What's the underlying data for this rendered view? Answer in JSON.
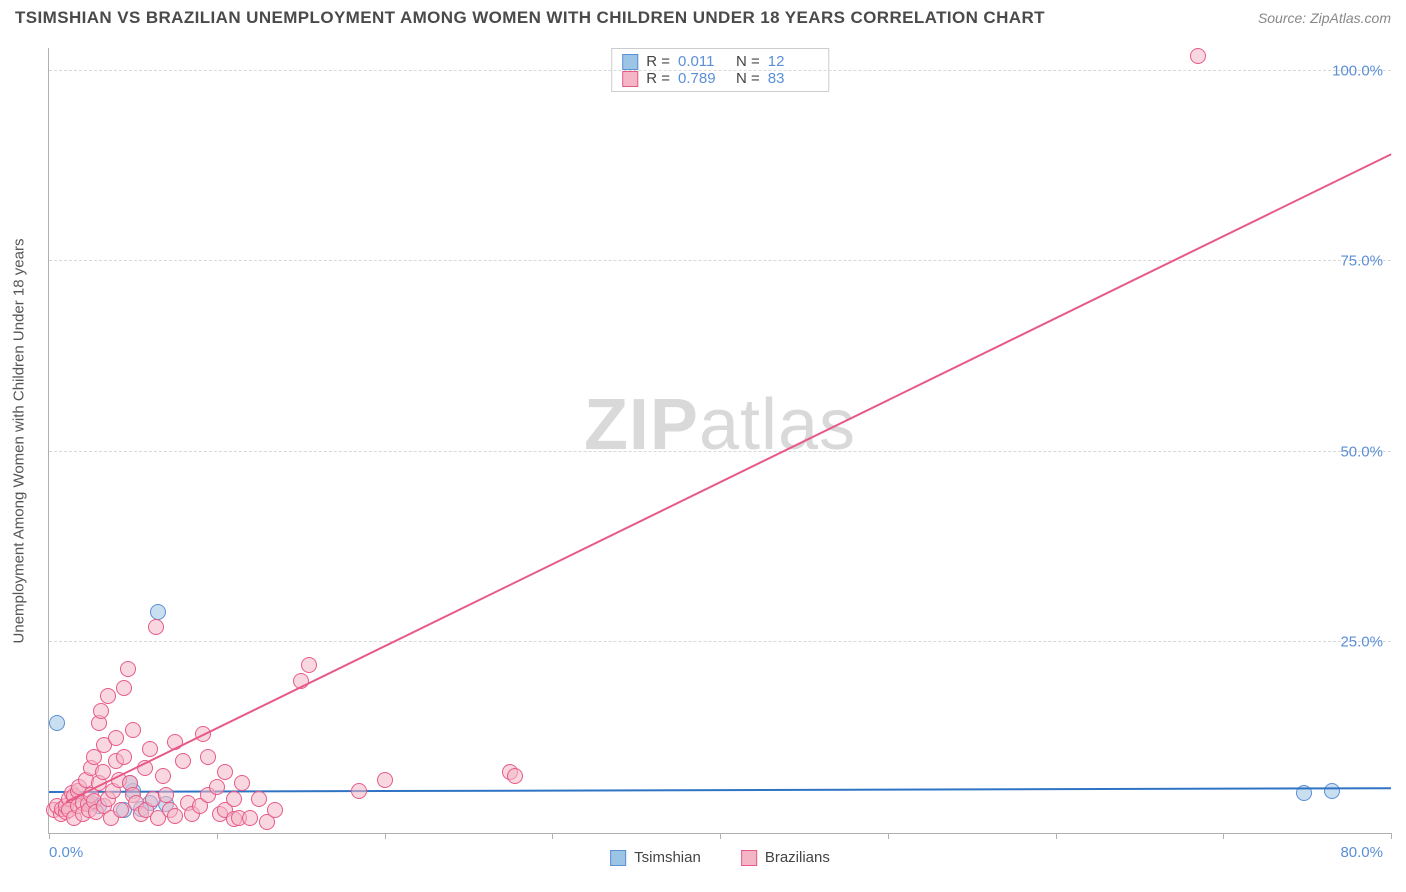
{
  "header": {
    "title": "TSIMSHIAN VS BRAZILIAN UNEMPLOYMENT AMONG WOMEN WITH CHILDREN UNDER 18 YEARS CORRELATION CHART",
    "source": "Source: ZipAtlas.com"
  },
  "watermark": {
    "part1": "ZIP",
    "part2": "atlas"
  },
  "chart": {
    "type": "scatter",
    "background_color": "#ffffff",
    "grid_color": "#d8d8d8",
    "axis_color": "#b0b0b0",
    "tick_label_color": "#5b8fd6",
    "axis_title_color": "#555555",
    "yaxis_title": "Unemployment Among Women with Children Under 18 years",
    "xlim": [
      0,
      80
    ],
    "ylim": [
      0,
      103
    ],
    "ytick_positions": [
      25,
      50,
      75,
      100
    ],
    "ytick_labels": [
      "25.0%",
      "50.0%",
      "75.0%",
      "100.0%"
    ],
    "xtick_positions": [
      0,
      10,
      20,
      30,
      40,
      50,
      60,
      70,
      80
    ],
    "xtick_end_labels": {
      "left": "0.0%",
      "right": "80.0%"
    },
    "legend_top": {
      "border_color": "#cccccc",
      "rows": [
        {
          "swatch_fill": "#9cc4e4",
          "swatch_border": "#5b8fd6",
          "r_label": "R =",
          "r_value": "0.011",
          "n_label": "N =",
          "n_value": "12"
        },
        {
          "swatch_fill": "#f4b6c6",
          "swatch_border": "#e75a88",
          "r_label": "R =",
          "r_value": "0.789",
          "n_label": "N =",
          "n_value": "83"
        }
      ]
    },
    "legend_bottom": {
      "items": [
        {
          "swatch_fill": "#9cc4e4",
          "swatch_border": "#5b8fd6",
          "label": "Tsimshian"
        },
        {
          "swatch_fill": "#f4b6c6",
          "swatch_border": "#e75a88",
          "label": "Brazilians"
        }
      ]
    },
    "series": [
      {
        "name": "Tsimshian",
        "marker_fill": "rgba(156,196,228,0.55)",
        "marker_border": "#5b8fd6",
        "marker_radius": 8,
        "points": [
          [
            0.5,
            14.5
          ],
          [
            6.5,
            29
          ],
          [
            5,
            5.5
          ],
          [
            6,
            4
          ],
          [
            4.5,
            3
          ],
          [
            3,
            3.5
          ],
          [
            5.5,
            3.2
          ],
          [
            7,
            3.8
          ],
          [
            2.5,
            4
          ],
          [
            74.8,
            5.2
          ],
          [
            76.5,
            5.5
          ],
          [
            4.8,
            6.5
          ]
        ],
        "trend": {
          "color": "#2f74c4",
          "width": 2,
          "x1": 0,
          "y1": 5.3,
          "x2": 80,
          "y2": 5.8
        }
      },
      {
        "name": "Brazilians",
        "marker_fill": "rgba(244,182,198,0.55)",
        "marker_border": "#e75a88",
        "marker_radius": 8,
        "points": [
          [
            0.3,
            3
          ],
          [
            0.5,
            3.5
          ],
          [
            0.7,
            2.5
          ],
          [
            0.8,
            3.2
          ],
          [
            1,
            2.8
          ],
          [
            1,
            3.6
          ],
          [
            1.2,
            4.5
          ],
          [
            1.2,
            3
          ],
          [
            1.4,
            5.2
          ],
          [
            1.5,
            2
          ],
          [
            1.5,
            4.8
          ],
          [
            1.7,
            3.5
          ],
          [
            1.7,
            5.5
          ],
          [
            1.8,
            6
          ],
          [
            2,
            4
          ],
          [
            2,
            2.5
          ],
          [
            2.2,
            7
          ],
          [
            2.3,
            3.8
          ],
          [
            2.4,
            3
          ],
          [
            2.5,
            8.5
          ],
          [
            2.5,
            5
          ],
          [
            2.7,
            10
          ],
          [
            2.7,
            4.2
          ],
          [
            2.8,
            2.8
          ],
          [
            3,
            6.5
          ],
          [
            3,
            14.5
          ],
          [
            3.1,
            16
          ],
          [
            3.2,
            8
          ],
          [
            3.3,
            11.5
          ],
          [
            3.3,
            3.5
          ],
          [
            3.5,
            4.5
          ],
          [
            3.5,
            18
          ],
          [
            3.7,
            2
          ],
          [
            3.8,
            5.5
          ],
          [
            4,
            9.5
          ],
          [
            4,
            12.5
          ],
          [
            4.2,
            7
          ],
          [
            4.3,
            3
          ],
          [
            4.5,
            10
          ],
          [
            4.5,
            19
          ],
          [
            4.7,
            21.5
          ],
          [
            4.8,
            6.5
          ],
          [
            5,
            5
          ],
          [
            5,
            13.5
          ],
          [
            5.2,
            4
          ],
          [
            5.5,
            2.5
          ],
          [
            5.7,
            8.5
          ],
          [
            5.8,
            3
          ],
          [
            6,
            11
          ],
          [
            6.2,
            4.5
          ],
          [
            6.4,
            27
          ],
          [
            6.5,
            2
          ],
          [
            6.8,
            7.5
          ],
          [
            7,
            5
          ],
          [
            7.2,
            3
          ],
          [
            7.5,
            12
          ],
          [
            7.5,
            2.2
          ],
          [
            8,
            9.5
          ],
          [
            8.3,
            4
          ],
          [
            8.5,
            2.5
          ],
          [
            9,
            3.5
          ],
          [
            9.2,
            13
          ],
          [
            9.5,
            5
          ],
          [
            9.5,
            10
          ],
          [
            10,
            6
          ],
          [
            10.2,
            2.5
          ],
          [
            10.5,
            8
          ],
          [
            10.5,
            3
          ],
          [
            11,
            1.8
          ],
          [
            11,
            4.5
          ],
          [
            11.3,
            2
          ],
          [
            11.5,
            6.5
          ],
          [
            12,
            2
          ],
          [
            12.5,
            4.5
          ],
          [
            13,
            1.5
          ],
          [
            13.5,
            3
          ],
          [
            15,
            20
          ],
          [
            15.5,
            22
          ],
          [
            18.5,
            5.5
          ],
          [
            20,
            7
          ],
          [
            27.5,
            8
          ],
          [
            27.8,
            7.5
          ],
          [
            68.5,
            102
          ]
        ],
        "trend": {
          "color": "#e75a88",
          "width": 2,
          "x1": 1,
          "y1": 4,
          "x2": 80,
          "y2": 89
        }
      }
    ]
  }
}
